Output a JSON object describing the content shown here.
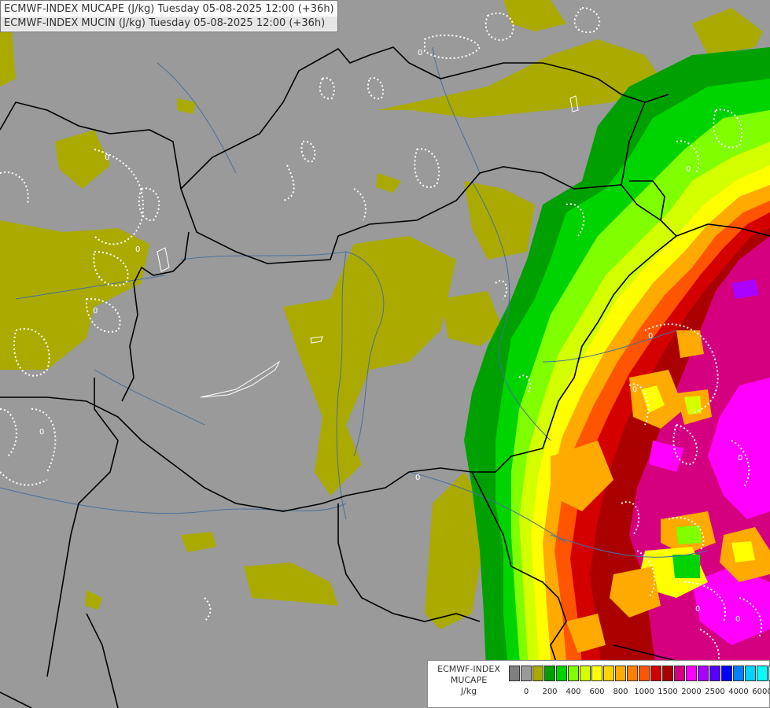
{
  "title": {
    "line1": "ECMWF-INDEX MUCAPE (J/kg) Tuesday 05-08-2025 12:00 (+36h)",
    "line2": "ECMWF-INDEX MUCIN (J/kg) Tuesday 05-08-2025 12:00 (+36h)"
  },
  "contour_label": "0",
  "legend": {
    "title_line1": "ECMWF-INDEX",
    "title_line2": "MUCAPE",
    "title_line3": "J/kg",
    "colors": [
      "#7f7f7f",
      "#9a9a9a",
      "#a9a900",
      "#00a000",
      "#00d400",
      "#7fff00",
      "#d4ff00",
      "#ffff00",
      "#ffd400",
      "#ffaa00",
      "#ff8000",
      "#ff5500",
      "#d40000",
      "#aa0000",
      "#d40080",
      "#ff00ff",
      "#aa00ff",
      "#5500ff",
      "#0000ff",
      "#0080ff",
      "#00d4ff",
      "#00ffff",
      "#80ffff",
      "#ffffff"
    ],
    "ticks": [
      "0",
      "200",
      "400",
      "600",
      "800",
      "1000",
      "1500",
      "2000",
      "2500",
      "4000",
      "6000"
    ]
  }
}
